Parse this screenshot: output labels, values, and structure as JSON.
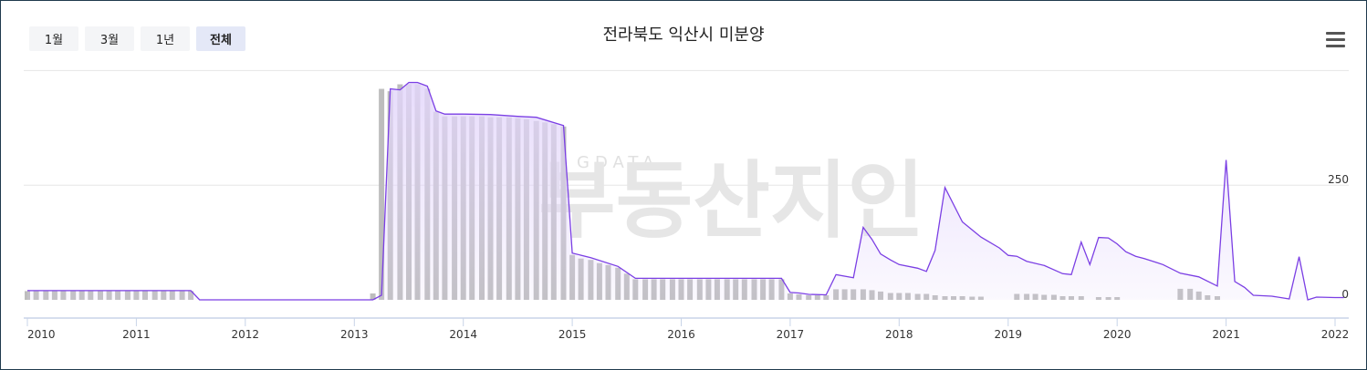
{
  "range_buttons": [
    {
      "label": "1월",
      "active": false
    },
    {
      "label": "3월",
      "active": false
    },
    {
      "label": "1년",
      "active": false
    },
    {
      "label": "전체",
      "active": true
    }
  ],
  "watermark": {
    "small": "GDATA",
    "big": "부동산지인"
  },
  "colors": {
    "line": "#7b3fe4",
    "area": "#e3d6fb",
    "bar": "#bdbdbd",
    "grid": "#e6e6e6",
    "axis": "#c8d4e8"
  },
  "chart_data": {
    "type": "line",
    "title": "전라북도 익산시 미분양",
    "x_range": [
      2010,
      2022
    ],
    "y_range": [
      0,
      475
    ],
    "x_ticks": [
      "2010",
      "2011",
      "2012",
      "2013",
      "2014",
      "2015",
      "2016",
      "2017",
      "2018",
      "2019",
      "2020",
      "2021",
      "2022"
    ],
    "y_ticks": [
      {
        "value": 0,
        "label": "0"
      },
      {
        "value": 250,
        "label": "250"
      }
    ],
    "grid": true,
    "series": [
      {
        "values": [
          [
            2010.0,
            20
          ],
          [
            2011.5,
            20
          ],
          [
            2011.58,
            0
          ],
          [
            2013.17,
            0
          ],
          [
            2013.25,
            10
          ],
          [
            2013.33,
            460
          ],
          [
            2013.42,
            458
          ],
          [
            2013.5,
            474
          ],
          [
            2013.58,
            474
          ],
          [
            2013.67,
            466
          ],
          [
            2013.75,
            412
          ],
          [
            2013.83,
            405
          ],
          [
            2014.0,
            405
          ],
          [
            2014.25,
            404
          ],
          [
            2014.5,
            400
          ],
          [
            2014.67,
            398
          ],
          [
            2014.92,
            380
          ],
          [
            2015.0,
            102
          ],
          [
            2015.17,
            92
          ],
          [
            2015.42,
            73
          ],
          [
            2015.58,
            47
          ],
          [
            2016.0,
            47
          ],
          [
            2016.92,
            47
          ],
          [
            2017.0,
            16
          ],
          [
            2017.08,
            15
          ],
          [
            2017.17,
            12
          ],
          [
            2017.33,
            11
          ],
          [
            2017.42,
            55
          ],
          [
            2017.58,
            48
          ],
          [
            2017.67,
            158
          ],
          [
            2017.75,
            132
          ],
          [
            2017.83,
            100
          ],
          [
            2017.92,
            87
          ],
          [
            2018.0,
            77
          ],
          [
            2018.17,
            69
          ],
          [
            2018.25,
            62
          ],
          [
            2018.33,
            108
          ],
          [
            2018.42,
            245
          ],
          [
            2018.58,
            170
          ],
          [
            2018.75,
            137
          ],
          [
            2018.92,
            113
          ],
          [
            2019.0,
            97
          ],
          [
            2019.08,
            95
          ],
          [
            2019.17,
            84
          ],
          [
            2019.33,
            75
          ],
          [
            2019.5,
            57
          ],
          [
            2019.58,
            55
          ],
          [
            2019.67,
            126
          ],
          [
            2019.75,
            77
          ],
          [
            2019.83,
            136
          ],
          [
            2019.92,
            135
          ],
          [
            2020.0,
            122
          ],
          [
            2020.08,
            105
          ],
          [
            2020.17,
            95
          ],
          [
            2020.25,
            90
          ],
          [
            2020.42,
            77
          ],
          [
            2020.58,
            58
          ],
          [
            2020.75,
            50
          ],
          [
            2020.92,
            30
          ],
          [
            2021.0,
            305
          ],
          [
            2021.08,
            40
          ],
          [
            2021.17,
            27
          ],
          [
            2021.25,
            10
          ],
          [
            2021.42,
            8
          ],
          [
            2021.58,
            2
          ],
          [
            2021.67,
            94
          ],
          [
            2021.75,
            0
          ],
          [
            2021.83,
            6
          ],
          [
            2022.0,
            5
          ],
          [
            2022.08,
            5
          ]
        ]
      },
      {
        "type": "bar",
        "values": [
          [
            2010.0,
            19
          ],
          [
            2010.08,
            19
          ],
          [
            2010.17,
            19
          ],
          [
            2010.25,
            19
          ],
          [
            2010.33,
            19
          ],
          [
            2010.42,
            19
          ],
          [
            2010.5,
            19
          ],
          [
            2010.58,
            19
          ],
          [
            2010.67,
            19
          ],
          [
            2010.75,
            19
          ],
          [
            2010.83,
            19
          ],
          [
            2010.92,
            19
          ],
          [
            2011.0,
            19
          ],
          [
            2011.08,
            19
          ],
          [
            2011.17,
            19
          ],
          [
            2011.25,
            19
          ],
          [
            2011.33,
            19
          ],
          [
            2011.42,
            19
          ],
          [
            2011.5,
            19
          ],
          [
            2013.17,
            14
          ],
          [
            2013.25,
            460
          ],
          [
            2013.33,
            455
          ],
          [
            2013.42,
            470
          ],
          [
            2013.5,
            470
          ],
          [
            2013.58,
            470
          ],
          [
            2013.67,
            460
          ],
          [
            2013.75,
            410
          ],
          [
            2013.83,
            400
          ],
          [
            2013.92,
            400
          ],
          [
            2014.0,
            400
          ],
          [
            2014.08,
            400
          ],
          [
            2014.17,
            400
          ],
          [
            2014.25,
            398
          ],
          [
            2014.33,
            398
          ],
          [
            2014.42,
            398
          ],
          [
            2014.5,
            396
          ],
          [
            2014.58,
            394
          ],
          [
            2014.67,
            390
          ],
          [
            2014.75,
            387
          ],
          [
            2014.83,
            383
          ],
          [
            2014.92,
            378
          ],
          [
            2015.0,
            98
          ],
          [
            2015.08,
            90
          ],
          [
            2015.17,
            87
          ],
          [
            2015.25,
            80
          ],
          [
            2015.33,
            76
          ],
          [
            2015.42,
            70
          ],
          [
            2015.5,
            57
          ],
          [
            2015.58,
            45
          ],
          [
            2015.67,
            45
          ],
          [
            2015.75,
            45
          ],
          [
            2015.83,
            45
          ],
          [
            2015.92,
            45
          ],
          [
            2016.0,
            45
          ],
          [
            2016.08,
            45
          ],
          [
            2016.17,
            45
          ],
          [
            2016.25,
            45
          ],
          [
            2016.33,
            45
          ],
          [
            2016.42,
            45
          ],
          [
            2016.5,
            45
          ],
          [
            2016.58,
            45
          ],
          [
            2016.67,
            45
          ],
          [
            2016.75,
            45
          ],
          [
            2016.83,
            45
          ],
          [
            2016.92,
            45
          ],
          [
            2017.0,
            14
          ],
          [
            2017.08,
            12
          ],
          [
            2017.17,
            10
          ],
          [
            2017.25,
            10
          ],
          [
            2017.33,
            10
          ],
          [
            2017.42,
            23
          ],
          [
            2017.5,
            23
          ],
          [
            2017.58,
            23
          ],
          [
            2017.67,
            23
          ],
          [
            2017.75,
            21
          ],
          [
            2017.83,
            18
          ],
          [
            2017.92,
            15
          ],
          [
            2018.0,
            15
          ],
          [
            2018.08,
            15
          ],
          [
            2018.17,
            13
          ],
          [
            2018.25,
            13
          ],
          [
            2018.33,
            10
          ],
          [
            2018.42,
            8
          ],
          [
            2018.5,
            8
          ],
          [
            2018.58,
            8
          ],
          [
            2018.67,
            7
          ],
          [
            2018.75,
            7
          ],
          [
            2019.08,
            13
          ],
          [
            2019.17,
            13
          ],
          [
            2019.25,
            13
          ],
          [
            2019.33,
            11
          ],
          [
            2019.42,
            11
          ],
          [
            2019.5,
            8
          ],
          [
            2019.58,
            8
          ],
          [
            2019.67,
            8
          ],
          [
            2019.83,
            6
          ],
          [
            2019.92,
            6
          ],
          [
            2020.0,
            6
          ],
          [
            2020.58,
            24
          ],
          [
            2020.67,
            24
          ],
          [
            2020.75,
            18
          ],
          [
            2020.83,
            10
          ],
          [
            2020.92,
            8
          ]
        ]
      }
    ]
  }
}
